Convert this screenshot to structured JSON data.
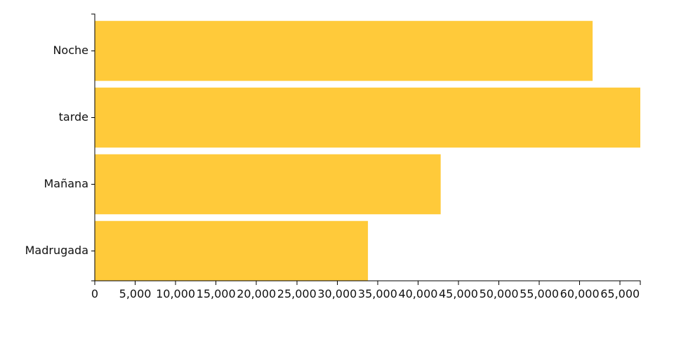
{
  "chart_data": {
    "type": "bar",
    "orientation": "horizontal",
    "categories": [
      "Noche",
      "tarde",
      "Mañana",
      "Madrugada"
    ],
    "values": [
      61600,
      67500,
      42800,
      33800
    ],
    "xlim": [
      0,
      67500
    ],
    "x_ticks": [
      "0",
      "5,000",
      "10,000",
      "15,000",
      "20,000",
      "25,000",
      "30,000",
      "35,000",
      "40,000",
      "45,000",
      "50,000",
      "55,000",
      "60,000",
      "65,000"
    ],
    "x_tick_values": [
      0,
      5000,
      10000,
      15000,
      20000,
      25000,
      30000,
      35000,
      40000,
      45000,
      50000,
      55000,
      60000,
      65000
    ],
    "bar_color": "#FFCA3A",
    "grid": false,
    "legend": "none"
  }
}
